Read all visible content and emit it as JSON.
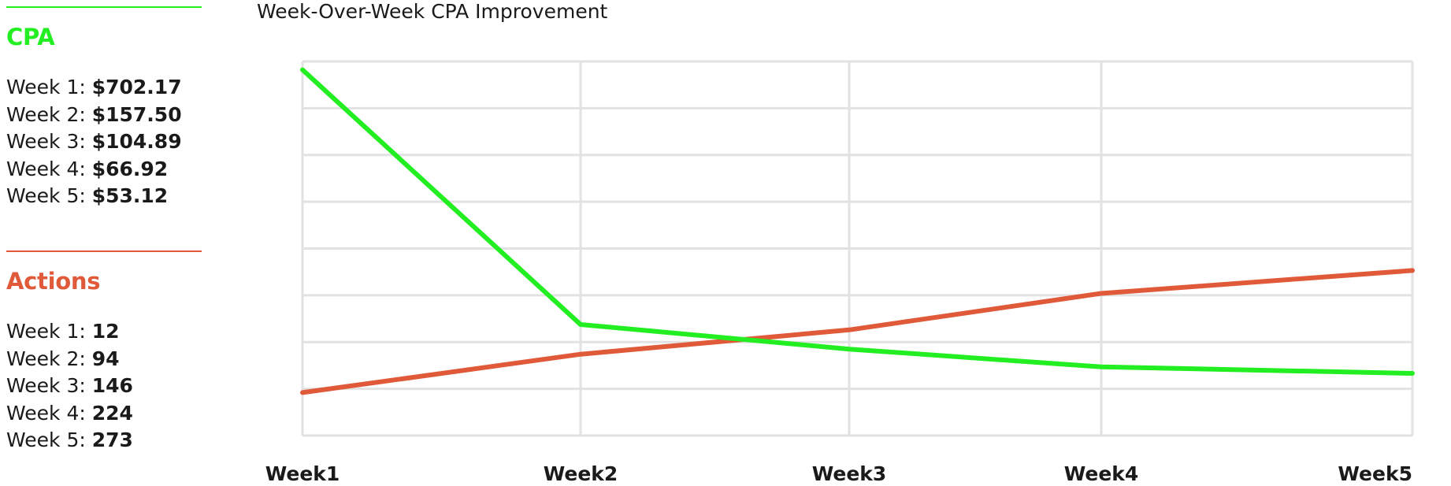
{
  "sidebar": {
    "cpa": {
      "title": "CPA",
      "color": "#22ee22",
      "rows": [
        {
          "label": "Week 1: ",
          "value": "$702.17"
        },
        {
          "label": "Week 2: ",
          "value": "$157.50"
        },
        {
          "label": "Week 3: ",
          "value": "$104.89"
        },
        {
          "label": "Week 4: ",
          "value": "$66.92"
        },
        {
          "label": "Week 5: ",
          "value": "$53.12"
        }
      ]
    },
    "actions": {
      "title": "Actions",
      "color": "#e05a3a",
      "rows": [
        {
          "label": "Week 1: ",
          "value": "12"
        },
        {
          "label": "Week 2: ",
          "value": "94"
        },
        {
          "label": "Week 3: ",
          "value": "146"
        },
        {
          "label": "Week 4: ",
          "value": "224"
        },
        {
          "label": "Week 5: ",
          "value": "273"
        }
      ]
    }
  },
  "chart_data": {
    "type": "line",
    "title": "Week-Over-Week CPA Improvement",
    "categories": [
      "Week1",
      "Week2",
      "Week3",
      "Week4",
      "Week5"
    ],
    "ylim": [
      -80,
      720
    ],
    "grid": true,
    "legend": "none",
    "series": [
      {
        "name": "CPA",
        "color": "#22ee22",
        "values": [
          702.17,
          157.5,
          104.89,
          66.92,
          53.12
        ]
      },
      {
        "name": "Actions",
        "color": "#e05a3a",
        "values": [
          12,
          94,
          146,
          224,
          273
        ]
      }
    ]
  }
}
